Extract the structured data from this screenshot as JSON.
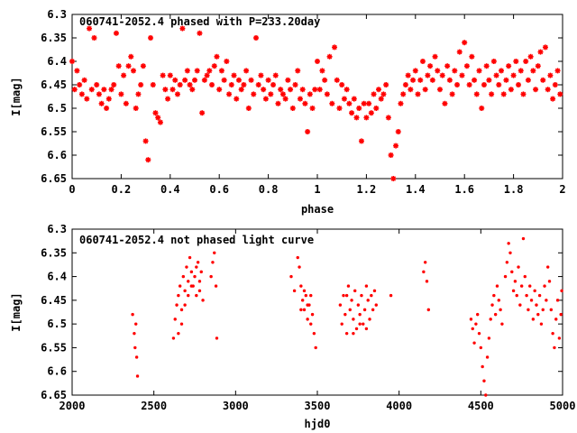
{
  "chart_data": [
    {
      "type": "scatter",
      "title": "060741-2052.4 phased with P=233.20day",
      "xlabel": "phase",
      "ylabel": "I[mag]",
      "xlim": [
        0,
        2
      ],
      "ylim": [
        6.65,
        6.3
      ],
      "y_inverted": true,
      "xticks": [
        "0",
        "0.2",
        "0.4",
        "0.6",
        "0.8",
        "1",
        "1.2",
        "1.4",
        "1.6",
        "1.8",
        "2"
      ],
      "yticks": [
        "6.3",
        "6.35",
        "6.4",
        "6.45",
        "6.5",
        "6.55",
        "6.6",
        "6.65"
      ],
      "grid": false,
      "marker_color": "#ff0000",
      "marker": "asterisk",
      "points": [
        [
          0.0,
          6.4
        ],
        [
          0.01,
          6.46
        ],
        [
          0.02,
          6.42
        ],
        [
          0.03,
          6.45
        ],
        [
          0.04,
          6.47
        ],
        [
          0.05,
          6.44
        ],
        [
          0.06,
          6.48
        ],
        [
          0.07,
          6.33
        ],
        [
          0.08,
          6.46
        ],
        [
          0.09,
          6.35
        ],
        [
          0.1,
          6.45
        ],
        [
          0.11,
          6.47
        ],
        [
          0.12,
          6.49
        ],
        [
          0.13,
          6.46
        ],
        [
          0.14,
          6.5
        ],
        [
          0.15,
          6.48
        ],
        [
          0.16,
          6.46
        ],
        [
          0.17,
          6.45
        ],
        [
          0.18,
          6.34
        ],
        [
          0.19,
          6.41
        ],
        [
          0.2,
          6.47
        ],
        [
          0.21,
          6.43
        ],
        [
          0.22,
          6.49
        ],
        [
          0.23,
          6.41
        ],
        [
          0.24,
          6.39
        ],
        [
          0.25,
          6.42
        ],
        [
          0.26,
          6.5
        ],
        [
          0.27,
          6.47
        ],
        [
          0.28,
          6.45
        ],
        [
          0.29,
          6.41
        ],
        [
          0.3,
          6.57
        ],
        [
          0.31,
          6.61
        ],
        [
          0.32,
          6.35
        ],
        [
          0.33,
          6.45
        ],
        [
          0.34,
          6.51
        ],
        [
          0.35,
          6.52
        ],
        [
          0.36,
          6.53
        ],
        [
          0.37,
          6.43
        ],
        [
          0.38,
          6.46
        ],
        [
          0.39,
          6.48
        ],
        [
          0.4,
          6.43
        ],
        [
          0.41,
          6.46
        ],
        [
          0.42,
          6.44
        ],
        [
          0.43,
          6.47
        ],
        [
          0.44,
          6.45
        ],
        [
          0.45,
          6.33
        ],
        [
          0.46,
          6.44
        ],
        [
          0.47,
          6.42
        ],
        [
          0.48,
          6.45
        ],
        [
          0.49,
          6.46
        ],
        [
          0.5,
          6.44
        ],
        [
          0.51,
          6.42
        ],
        [
          0.52,
          6.34
        ],
        [
          0.53,
          6.51
        ],
        [
          0.54,
          6.44
        ],
        [
          0.55,
          6.43
        ],
        [
          0.56,
          6.42
        ],
        [
          0.57,
          6.45
        ],
        [
          0.58,
          6.41
        ],
        [
          0.59,
          6.39
        ],
        [
          0.6,
          6.46
        ],
        [
          0.61,
          6.42
        ],
        [
          0.62,
          6.44
        ],
        [
          0.63,
          6.4
        ],
        [
          0.64,
          6.47
        ],
        [
          0.65,
          6.45
        ],
        [
          0.66,
          6.43
        ],
        [
          0.67,
          6.48
        ],
        [
          0.68,
          6.44
        ],
        [
          0.69,
          6.46
        ],
        [
          0.7,
          6.45
        ],
        [
          0.71,
          6.42
        ],
        [
          0.72,
          6.5
        ],
        [
          0.73,
          6.44
        ],
        [
          0.74,
          6.47
        ],
        [
          0.75,
          6.35
        ],
        [
          0.76,
          6.45
        ],
        [
          0.77,
          6.43
        ],
        [
          0.78,
          6.46
        ],
        [
          0.79,
          6.48
        ],
        [
          0.8,
          6.44
        ],
        [
          0.81,
          6.47
        ],
        [
          0.82,
          6.45
        ],
        [
          0.83,
          6.43
        ],
        [
          0.84,
          6.49
        ],
        [
          0.85,
          6.46
        ],
        [
          0.86,
          6.47
        ],
        [
          0.87,
          6.48
        ],
        [
          0.88,
          6.44
        ],
        [
          0.89,
          6.46
        ],
        [
          0.9,
          6.5
        ],
        [
          0.91,
          6.45
        ],
        [
          0.92,
          6.42
        ],
        [
          0.93,
          6.48
        ],
        [
          0.94,
          6.46
        ],
        [
          0.95,
          6.49
        ],
        [
          0.96,
          6.55
        ],
        [
          0.97,
          6.47
        ],
        [
          0.98,
          6.5
        ],
        [
          0.99,
          6.46
        ],
        [
          1.0,
          6.4
        ],
        [
          1.01,
          6.46
        ],
        [
          1.02,
          6.42
        ],
        [
          1.03,
          6.44
        ],
        [
          1.04,
          6.47
        ],
        [
          1.05,
          6.39
        ],
        [
          1.06,
          6.49
        ],
        [
          1.07,
          6.37
        ],
        [
          1.08,
          6.44
        ],
        [
          1.09,
          6.5
        ],
        [
          1.1,
          6.45
        ],
        [
          1.11,
          6.48
        ],
        [
          1.12,
          6.46
        ],
        [
          1.13,
          6.49
        ],
        [
          1.14,
          6.51
        ],
        [
          1.15,
          6.48
        ],
        [
          1.16,
          6.52
        ],
        [
          1.17,
          6.5
        ],
        [
          1.18,
          6.57
        ],
        [
          1.19,
          6.49
        ],
        [
          1.2,
          6.52
        ],
        [
          1.21,
          6.49
        ],
        [
          1.22,
          6.51
        ],
        [
          1.23,
          6.47
        ],
        [
          1.24,
          6.5
        ],
        [
          1.25,
          6.46
        ],
        [
          1.26,
          6.48
        ],
        [
          1.27,
          6.47
        ],
        [
          1.28,
          6.45
        ],
        [
          1.29,
          6.52
        ],
        [
          1.3,
          6.6
        ],
        [
          1.31,
          6.65
        ],
        [
          1.32,
          6.58
        ],
        [
          1.33,
          6.55
        ],
        [
          1.34,
          6.49
        ],
        [
          1.35,
          6.47
        ],
        [
          1.36,
          6.45
        ],
        [
          1.37,
          6.43
        ],
        [
          1.38,
          6.46
        ],
        [
          1.39,
          6.44
        ],
        [
          1.4,
          6.42
        ],
        [
          1.41,
          6.47
        ],
        [
          1.42,
          6.44
        ],
        [
          1.43,
          6.4
        ],
        [
          1.44,
          6.46
        ],
        [
          1.45,
          6.43
        ],
        [
          1.46,
          6.41
        ],
        [
          1.47,
          6.44
        ],
        [
          1.48,
          6.39
        ],
        [
          1.49,
          6.42
        ],
        [
          1.5,
          6.46
        ],
        [
          1.51,
          6.43
        ],
        [
          1.52,
          6.49
        ],
        [
          1.53,
          6.41
        ],
        [
          1.54,
          6.44
        ],
        [
          1.55,
          6.47
        ],
        [
          1.56,
          6.42
        ],
        [
          1.57,
          6.45
        ],
        [
          1.58,
          6.38
        ],
        [
          1.59,
          6.43
        ],
        [
          1.6,
          6.36
        ],
        [
          1.61,
          6.41
        ],
        [
          1.62,
          6.45
        ],
        [
          1.63,
          6.39
        ],
        [
          1.64,
          6.44
        ],
        [
          1.65,
          6.47
        ],
        [
          1.66,
          6.42
        ],
        [
          1.67,
          6.5
        ],
        [
          1.68,
          6.45
        ],
        [
          1.69,
          6.41
        ],
        [
          1.7,
          6.44
        ],
        [
          1.71,
          6.47
        ],
        [
          1.72,
          6.4
        ],
        [
          1.73,
          6.43
        ],
        [
          1.74,
          6.45
        ],
        [
          1.75,
          6.42
        ],
        [
          1.76,
          6.47
        ],
        [
          1.77,
          6.44
        ],
        [
          1.78,
          6.41
        ],
        [
          1.79,
          6.46
        ],
        [
          1.8,
          6.43
        ],
        [
          1.81,
          6.4
        ],
        [
          1.82,
          6.45
        ],
        [
          1.83,
          6.42
        ],
        [
          1.84,
          6.47
        ],
        [
          1.85,
          6.4
        ],
        [
          1.86,
          6.44
        ],
        [
          1.87,
          6.39
        ],
        [
          1.88,
          6.42
        ],
        [
          1.89,
          6.46
        ],
        [
          1.9,
          6.41
        ],
        [
          1.91,
          6.38
        ],
        [
          1.92,
          6.44
        ],
        [
          1.93,
          6.37
        ],
        [
          1.94,
          6.46
        ],
        [
          1.95,
          6.43
        ],
        [
          1.96,
          6.48
        ],
        [
          1.97,
          6.45
        ],
        [
          1.98,
          6.42
        ],
        [
          1.99,
          6.47
        ]
      ]
    },
    {
      "type": "scatter",
      "title": "060741-2052.4 not phased light curve",
      "xlabel": "hjd0",
      "ylabel": "I[mag]",
      "xlim": [
        2000,
        5000
      ],
      "ylim": [
        6.65,
        6.3
      ],
      "y_inverted": true,
      "xticks": [
        "2000",
        "2500",
        "3000",
        "3500",
        "4000",
        "4500",
        "5000"
      ],
      "yticks": [
        "6.3",
        "6.35",
        "6.4",
        "6.45",
        "6.5",
        "6.55",
        "6.6",
        "6.65"
      ],
      "grid": false,
      "marker_color": "#ff0000",
      "marker": "dot",
      "points": [
        [
          2370,
          6.48
        ],
        [
          2380,
          6.52
        ],
        [
          2385,
          6.55
        ],
        [
          2390,
          6.5
        ],
        [
          2395,
          6.57
        ],
        [
          2400,
          6.61
        ],
        [
          2620,
          6.53
        ],
        [
          2630,
          6.49
        ],
        [
          2640,
          6.46
        ],
        [
          2650,
          6.44
        ],
        [
          2660,
          6.42
        ],
        [
          2670,
          6.47
        ],
        [
          2680,
          6.4
        ],
        [
          2690,
          6.43
        ],
        [
          2700,
          6.38
        ],
        [
          2710,
          6.41
        ],
        [
          2720,
          6.36
        ],
        [
          2730,
          6.39
        ],
        [
          2740,
          6.42
        ],
        [
          2750,
          6.4
        ],
        [
          2760,
          6.44
        ],
        [
          2770,
          6.37
        ],
        [
          2780,
          6.41
        ],
        [
          2790,
          6.39
        ],
        [
          2800,
          6.45
        ],
        [
          2650,
          6.52
        ],
        [
          2670,
          6.5
        ],
        [
          2690,
          6.46
        ],
        [
          2710,
          6.44
        ],
        [
          2730,
          6.42
        ],
        [
          2760,
          6.38
        ],
        [
          2780,
          6.43
        ],
        [
          2850,
          6.4
        ],
        [
          2860,
          6.37
        ],
        [
          2870,
          6.35
        ],
        [
          2880,
          6.42
        ],
        [
          2885,
          6.53
        ],
        [
          3340,
          6.4
        ],
        [
          3360,
          6.43
        ],
        [
          3380,
          6.36
        ],
        [
          3390,
          6.38
        ],
        [
          3400,
          6.42
        ],
        [
          3410,
          6.45
        ],
        [
          3420,
          6.47
        ],
        [
          3430,
          6.44
        ],
        [
          3440,
          6.49
        ],
        [
          3450,
          6.46
        ],
        [
          3460,
          6.5
        ],
        [
          3470,
          6.48
        ],
        [
          3480,
          6.52
        ],
        [
          3490,
          6.55
        ],
        [
          3400,
          6.47
        ],
        [
          3420,
          6.43
        ],
        [
          3440,
          6.46
        ],
        [
          3460,
          6.44
        ],
        [
          3640,
          6.46
        ],
        [
          3650,
          6.5
        ],
        [
          3660,
          6.44
        ],
        [
          3670,
          6.48
        ],
        [
          3680,
          6.52
        ],
        [
          3690,
          6.42
        ],
        [
          3700,
          6.47
        ],
        [
          3710,
          6.45
        ],
        [
          3720,
          6.49
        ],
        [
          3730,
          6.43
        ],
        [
          3740,
          6.51
        ],
        [
          3750,
          6.46
        ],
        [
          3760,
          6.48
        ],
        [
          3770,
          6.44
        ],
        [
          3780,
          6.5
        ],
        [
          3790,
          6.47
        ],
        [
          3800,
          6.42
        ],
        [
          3810,
          6.45
        ],
        [
          3820,
          6.49
        ],
        [
          3830,
          6.44
        ],
        [
          3840,
          6.47
        ],
        [
          3850,
          6.43
        ],
        [
          3860,
          6.46
        ],
        [
          3680,
          6.44
        ],
        [
          3720,
          6.52
        ],
        [
          3760,
          6.5
        ],
        [
          3800,
          6.51
        ],
        [
          3950,
          6.44
        ],
        [
          4150,
          6.39
        ],
        [
          4160,
          6.37
        ],
        [
          4170,
          6.41
        ],
        [
          4180,
          6.47
        ],
        [
          4440,
          6.49
        ],
        [
          4450,
          6.51
        ],
        [
          4460,
          6.54
        ],
        [
          4470,
          6.5
        ],
        [
          4480,
          6.48
        ],
        [
          4490,
          6.52
        ],
        [
          4500,
          6.55
        ],
        [
          4510,
          6.59
        ],
        [
          4520,
          6.62
        ],
        [
          4530,
          6.65
        ],
        [
          4540,
          6.57
        ],
        [
          4550,
          6.53
        ],
        [
          4560,
          6.49
        ],
        [
          4570,
          6.46
        ],
        [
          4580,
          6.44
        ],
        [
          4590,
          6.48
        ],
        [
          4600,
          6.42
        ],
        [
          4610,
          6.45
        ],
        [
          4620,
          6.47
        ],
        [
          4630,
          6.5
        ],
        [
          4650,
          6.4
        ],
        [
          4660,
          6.37
        ],
        [
          4670,
          6.33
        ],
        [
          4680,
          6.35
        ],
        [
          4690,
          6.39
        ],
        [
          4700,
          6.43
        ],
        [
          4710,
          6.41
        ],
        [
          4720,
          6.44
        ],
        [
          4730,
          6.38
        ],
        [
          4740,
          6.46
        ],
        [
          4750,
          6.42
        ],
        [
          4760,
          6.32
        ],
        [
          4770,
          6.4
        ],
        [
          4780,
          6.44
        ],
        [
          4790,
          6.47
        ],
        [
          4800,
          6.42
        ],
        [
          4810,
          6.45
        ],
        [
          4820,
          6.49
        ],
        [
          4830,
          6.43
        ],
        [
          4840,
          6.46
        ],
        [
          4850,
          6.48
        ],
        [
          4860,
          6.44
        ],
        [
          4870,
          6.5
        ],
        [
          4880,
          6.47
        ],
        [
          4890,
          6.42
        ],
        [
          4900,
          6.45
        ],
        [
          4910,
          6.38
        ],
        [
          4920,
          6.41
        ],
        [
          4930,
          6.47
        ],
        [
          4940,
          6.52
        ],
        [
          4950,
          6.55
        ],
        [
          4960,
          6.49
        ],
        [
          4970,
          6.45
        ],
        [
          4980,
          6.53
        ],
        [
          4990,
          6.48
        ],
        [
          4995,
          6.43
        ]
      ]
    }
  ]
}
